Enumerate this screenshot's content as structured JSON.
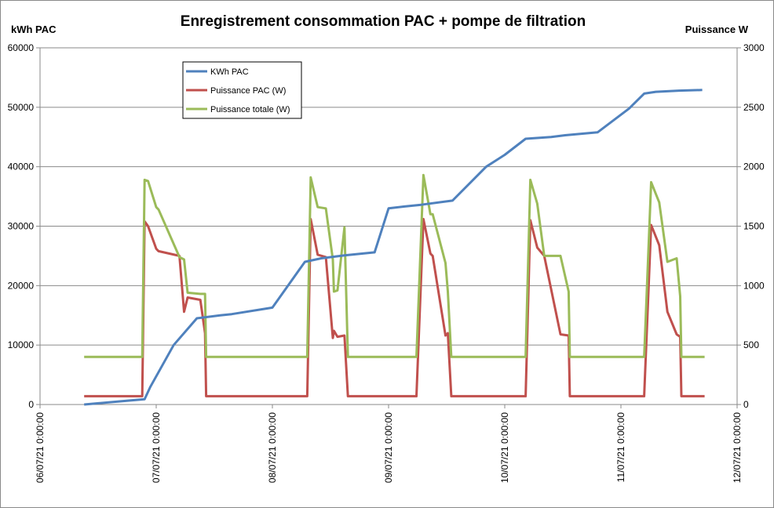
{
  "chart_data": {
    "type": "line",
    "title": "Enregistrement consommation PAC + pompe de filtration",
    "ylabel": "kWh PAC",
    "y2label": "Puissance W",
    "ylim": [
      0,
      60000
    ],
    "y2lim": [
      0,
      3000
    ],
    "yticks": [
      "0",
      "10000",
      "20000",
      "30000",
      "40000",
      "50000",
      "60000"
    ],
    "y2ticks": [
      "0",
      "500",
      "1000",
      "1500",
      "2000",
      "2500",
      "3000"
    ],
    "xlim": [
      0,
      6
    ],
    "xticks": [
      "06/07/21 0:00:00",
      "07/07/21 0:00:00",
      "08/07/21 0:00:00",
      "09/07/21 0:00:00",
      "10/07/21 0:00:00",
      "11/07/21 0:00:00",
      "12/07/21 0:00:00"
    ],
    "grid": "horizontal",
    "legend": "top-left",
    "series": [
      {
        "name": "KWh PAC",
        "axis": "left",
        "color": "#4f81bd",
        "x": [
          0.38,
          0.9,
          0.95,
          1.15,
          1.35,
          1.55,
          1.65,
          2.0,
          2.28,
          2.42,
          2.62,
          2.88,
          3.0,
          3.13,
          3.28,
          3.55,
          3.84,
          4.0,
          4.18,
          4.4,
          4.52,
          4.8,
          5.07,
          5.2,
          5.3,
          5.5,
          5.7
        ],
        "values": [
          0,
          900,
          3000,
          10000,
          14500,
          15000,
          15200,
          16300,
          24000,
          24600,
          25100,
          25600,
          33000,
          33300,
          33600,
          34300,
          40000,
          42000,
          44700,
          45000,
          45300,
          45800,
          49800,
          52300,
          52600,
          52800,
          52900
        ]
      },
      {
        "name": "Puissance PAC (W)",
        "axis": "right",
        "color": "#c0504d",
        "x": [
          0.38,
          0.88,
          0.9,
          0.93,
          1.0,
          1.02,
          1.2,
          1.24,
          1.27,
          1.38,
          1.42,
          1.43,
          1.85,
          2.3,
          2.33,
          2.39,
          2.46,
          2.52,
          2.53,
          2.56,
          2.62,
          2.65,
          2.66,
          2.9,
          3.24,
          3.3,
          3.36,
          3.38,
          3.49,
          3.51,
          3.54,
          3.55,
          4.18,
          4.22,
          4.28,
          4.34,
          4.48,
          4.55,
          4.56,
          4.8,
          5.2,
          5.26,
          5.33,
          5.4,
          5.48,
          5.51,
          5.52,
          5.72
        ],
        "values": [
          70,
          70,
          1540,
          1500,
          1310,
          1290,
          1250,
          780,
          900,
          880,
          600,
          70,
          70,
          70,
          1560,
          1260,
          1240,
          560,
          620,
          570,
          580,
          70,
          70,
          70,
          70,
          1560,
          1270,
          1250,
          580,
          600,
          70,
          70,
          70,
          1550,
          1320,
          1250,
          590,
          580,
          70,
          70,
          70,
          1510,
          1340,
          780,
          590,
          570,
          70,
          70
        ]
      },
      {
        "name": "Puissance totale (W)",
        "axis": "right",
        "color": "#9bbb59",
        "x": [
          0.38,
          0.88,
          0.9,
          0.93,
          1.0,
          1.02,
          1.2,
          1.24,
          1.27,
          1.38,
          1.42,
          1.43,
          1.85,
          2.3,
          2.33,
          2.39,
          2.46,
          2.52,
          2.53,
          2.56,
          2.62,
          2.65,
          2.66,
          2.9,
          3.24,
          3.3,
          3.36,
          3.38,
          3.49,
          3.51,
          3.54,
          3.55,
          4.18,
          4.22,
          4.28,
          4.34,
          4.48,
          4.55,
          4.56,
          4.8,
          5.2,
          5.26,
          5.33,
          5.4,
          5.48,
          5.51,
          5.52,
          5.72
        ],
        "values": [
          400,
          400,
          1890,
          1880,
          1660,
          1640,
          1240,
          1220,
          940,
          930,
          930,
          400,
          400,
          400,
          1910,
          1660,
          1650,
          1220,
          950,
          960,
          1490,
          400,
          400,
          400,
          400,
          1930,
          1600,
          1600,
          1190,
          950,
          400,
          400,
          400,
          1890,
          1690,
          1250,
          1250,
          950,
          400,
          400,
          400,
          1870,
          1700,
          1200,
          1230,
          910,
          400,
          400
        ]
      }
    ]
  }
}
